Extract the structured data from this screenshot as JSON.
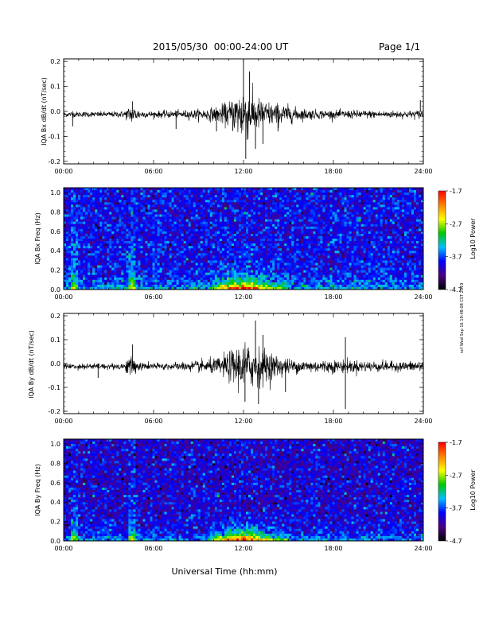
{
  "header": {
    "title": "2015/05/30  00:00-24:00 UT",
    "page": "Page 1/1"
  },
  "footer": {
    "xlabel": "Universal Time (hh:mm)",
    "stamp": "ncf Wed Sep 16 19:48:08 CST 2019"
  },
  "colors": {
    "trace": "#000000",
    "spectrogram_scale": [
      "#000000",
      "#4b0082",
      "#0000ff",
      "#00bfff",
      "#00c800",
      "#ffff00",
      "#ff8000",
      "#ff0000"
    ]
  },
  "chart_data": [
    {
      "id": "bx-dbdt",
      "type": "line",
      "ylabel": "IQA Bx dB/dt (nT/sec)",
      "xlim": [
        "00:00",
        "24:00"
      ],
      "xticks": [
        "00:00",
        "06:00",
        "12:00",
        "18:00",
        "24:00"
      ],
      "ylim": [
        -0.21,
        0.21
      ],
      "yticks": [
        "0.2",
        "0.1",
        "0.0",
        "-0.1",
        "-0.2"
      ],
      "envelope": {
        "x_hours": [
          0,
          1,
          2,
          3,
          4,
          4.5,
          5,
          5.5,
          6,
          7,
          8,
          9,
          10,
          10.5,
          11,
          11.5,
          12,
          12.5,
          13,
          13.5,
          14,
          14.5,
          15,
          15.5,
          16,
          17,
          18,
          19,
          20,
          21,
          22,
          23,
          24
        ],
        "amplitude": [
          0.012,
          0.012,
          0.012,
          0.012,
          0.014,
          0.04,
          0.022,
          0.014,
          0.014,
          0.016,
          0.018,
          0.022,
          0.03,
          0.04,
          0.055,
          0.09,
          0.13,
          0.09,
          0.07,
          0.06,
          0.05,
          0.045,
          0.04,
          0.03,
          0.025,
          0.02,
          0.018,
          0.018,
          0.018,
          0.016,
          0.016,
          0.016,
          0.02
        ]
      },
      "spikes": [
        {
          "hour": 0.6,
          "value": -0.06
        },
        {
          "hour": 4.6,
          "value": 0.04
        },
        {
          "hour": 7.5,
          "value": -0.07
        },
        {
          "hour": 10.2,
          "value": -0.08
        },
        {
          "hour": 12.0,
          "value": 0.21
        },
        {
          "hour": 12.15,
          "value": -0.19
        },
        {
          "hour": 12.4,
          "value": 0.16
        },
        {
          "hour": 12.8,
          "value": -0.15
        },
        {
          "hour": 13.3,
          "value": -0.13
        },
        {
          "hour": 14.3,
          "value": -0.08
        },
        {
          "hour": 23.8,
          "value": 0.045
        }
      ]
    },
    {
      "id": "bx-spectrogram",
      "type": "heatmap",
      "ylabel": "IQA Bx Freq (Hz)",
      "xlim": [
        "00:00",
        "24:00"
      ],
      "xticks": [
        "00:00",
        "06:00",
        "12:00",
        "18:00",
        "24:00"
      ],
      "ylim": [
        0.0,
        1.05
      ],
      "yticks": [
        "1.0",
        "0.8",
        "0.6",
        "0.4",
        "0.2",
        "0.0"
      ],
      "colorbar": {
        "label": "Log10 Power",
        "ticks": [
          "-1.7",
          "-2.7",
          "-3.7",
          "-4.7"
        ],
        "range": [
          -4.7,
          -1.7
        ]
      },
      "background_level": -3.9,
      "low_freq_enhancement_hours": [
        [
          0.5,
          1.0
        ],
        [
          4.3,
          4.8
        ],
        [
          10.0,
          15.0
        ],
        [
          23.8,
          24.0
        ]
      ],
      "peak_hour": 12.0
    },
    {
      "id": "by-dbdt",
      "type": "line",
      "ylabel": "IQA By dB/dt (nT/sec)",
      "xlim": [
        "00:00",
        "24:00"
      ],
      "xticks": [
        "00:00",
        "06:00",
        "12:00",
        "18:00",
        "24:00"
      ],
      "ylim": [
        -0.21,
        0.21
      ],
      "yticks": [
        "0.2",
        "0.1",
        "0.0",
        "-0.1",
        "-0.2"
      ],
      "envelope": {
        "x_hours": [
          0,
          1,
          2,
          3,
          4,
          4.5,
          5,
          5.5,
          6,
          7,
          8,
          9,
          10,
          10.5,
          11,
          11.5,
          12,
          12.5,
          13,
          13.5,
          14,
          14.5,
          15,
          15.5,
          16,
          17,
          18,
          19,
          20,
          21,
          22,
          23,
          24
        ],
        "amplitude": [
          0.014,
          0.014,
          0.014,
          0.014,
          0.016,
          0.05,
          0.02,
          0.016,
          0.016,
          0.016,
          0.02,
          0.026,
          0.035,
          0.045,
          0.065,
          0.09,
          0.11,
          0.1,
          0.09,
          0.075,
          0.06,
          0.045,
          0.035,
          0.03,
          0.03,
          0.028,
          0.03,
          0.03,
          0.025,
          0.025,
          0.022,
          0.022,
          0.03
        ]
      },
      "spikes": [
        {
          "hour": 2.3,
          "value": -0.06
        },
        {
          "hour": 4.6,
          "value": 0.08
        },
        {
          "hour": 12.1,
          "value": -0.16
        },
        {
          "hour": 12.8,
          "value": 0.18
        },
        {
          "hour": 13.0,
          "value": -0.17
        },
        {
          "hour": 13.3,
          "value": 0.12
        },
        {
          "hour": 14.8,
          "value": -0.12
        },
        {
          "hour": 18.8,
          "value": 0.11
        },
        {
          "hour": 18.8,
          "value": -0.19
        }
      ]
    },
    {
      "id": "by-spectrogram",
      "type": "heatmap",
      "ylabel": "IQA By Freq (Hz)",
      "xlim": [
        "00:00",
        "24:00"
      ],
      "xticks": [
        "00:00",
        "06:00",
        "12:00",
        "18:00",
        "24:00"
      ],
      "ylim": [
        0.0,
        1.05
      ],
      "yticks": [
        "1.0",
        "0.8",
        "0.6",
        "0.4",
        "0.2",
        "0.0"
      ],
      "colorbar": {
        "label": "Log10 Power",
        "ticks": [
          "-1.7",
          "-2.7",
          "-3.7",
          "-4.7"
        ],
        "range": [
          -4.7,
          -1.7
        ]
      },
      "background_level": -4.0,
      "low_freq_enhancement_hours": [
        [
          0.5,
          1.0
        ],
        [
          4.3,
          4.8
        ],
        [
          10.0,
          15.0
        ],
        [
          23.8,
          24.0
        ]
      ],
      "peak_hour": 12.0
    }
  ]
}
